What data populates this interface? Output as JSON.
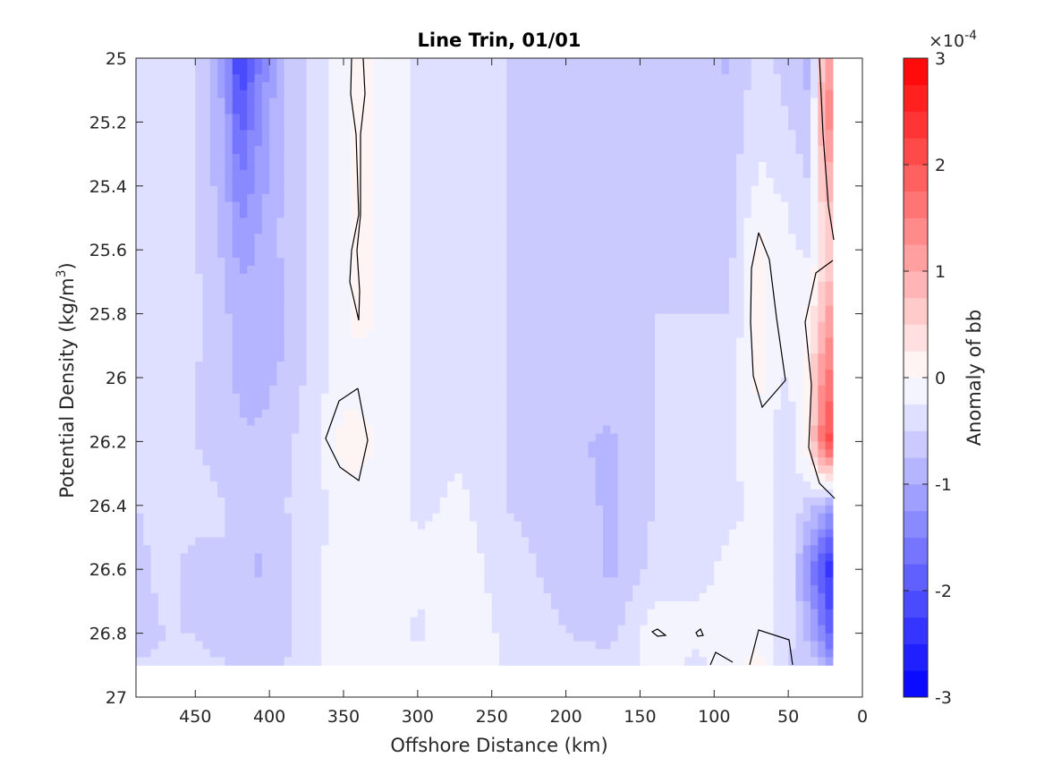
{
  "chart_data": {
    "type": "heatmap",
    "title": "Line Trin, 01/01",
    "xlabel": "Offshore Distance (km)",
    "ylabel_main": "Potential Density (kg/m",
    "ylabel_sup": "3",
    "ylabel_close": ")",
    "xlim": [
      490,
      0
    ],
    "ylim": [
      25,
      27
    ],
    "x_reversed": true,
    "y_reversed": true,
    "x_ticks": [
      450,
      400,
      350,
      300,
      250,
      200,
      150,
      100,
      50,
      0
    ],
    "x_tick_labels": [
      "450",
      "400",
      "350",
      "300",
      "250",
      "200",
      "150",
      "100",
      "50",
      "0"
    ],
    "y_ticks": [
      25,
      25.2,
      25.4,
      25.6,
      25.8,
      26,
      26.2,
      26.4,
      26.6,
      26.8,
      27
    ],
    "y_tick_labels": [
      "25",
      "25.2",
      "25.4",
      "25.6",
      "25.8",
      "26",
      "26.2",
      "26.4",
      "26.6",
      "26.8",
      "27"
    ],
    "colorbar": {
      "label": "Anomaly of bb",
      "exponent_base": "×10",
      "exponent_power": "-4",
      "clim": [
        -3,
        3
      ],
      "ticks": [
        -3,
        -2,
        -1,
        0,
        1,
        2,
        3
      ],
      "tick_labels": [
        "-3",
        "-2",
        "-1",
        "0",
        "1",
        "2",
        "3"
      ],
      "levels": 24,
      "colormap": "blue-white-red",
      "negative_color": "#0000ff",
      "positive_color": "#ff0000",
      "zero_color": "#ffffff"
    },
    "data_extent": {
      "x": [
        490,
        20
      ],
      "y": [
        25,
        26.9
      ]
    },
    "zero_contour_color": "#000000",
    "column_profiles_note": "approximate anomaly (x1e-4) at density rows",
    "density_rows": [
      25.0,
      25.2,
      25.4,
      25.6,
      25.8,
      26.0,
      26.2,
      26.4,
      26.6,
      26.8,
      26.9
    ],
    "columns": [
      {
        "x": 490,
        "values": [
          -0.4,
          -0.4,
          -0.4,
          -0.4,
          -0.4,
          -0.5,
          -0.5,
          -0.5,
          -0.6,
          -0.6,
          -0.5
        ]
      },
      {
        "x": 470,
        "values": [
          -0.4,
          -0.4,
          -0.5,
          -0.4,
          -0.4,
          -0.4,
          -0.4,
          -0.4,
          -0.4,
          -0.5,
          -0.4
        ]
      },
      {
        "x": 450,
        "values": [
          -0.4,
          -0.5,
          -0.5,
          -0.5,
          -0.4,
          -0.5,
          -0.5,
          -0.4,
          -0.6,
          -0.5,
          -0.4
        ]
      },
      {
        "x": 430,
        "values": [
          -1.2,
          -1.0,
          -0.9,
          -0.8,
          -0.7,
          -0.7,
          -0.6,
          -0.5,
          -0.5,
          -0.6,
          -0.5
        ]
      },
      {
        "x": 420,
        "values": [
          -2.4,
          -1.9,
          -1.5,
          -1.1,
          -0.9,
          -0.8,
          -0.7,
          -0.6,
          -0.6,
          -0.6,
          -0.5
        ]
      },
      {
        "x": 410,
        "values": [
          -1.7,
          -1.4,
          -1.2,
          -1.0,
          -0.9,
          -0.9,
          -0.7,
          -0.7,
          -0.8,
          -0.6,
          -0.5
        ]
      },
      {
        "x": 390,
        "values": [
          -0.7,
          -0.7,
          -0.7,
          -0.7,
          -0.8,
          -0.7,
          -0.6,
          -0.5,
          -0.6,
          -0.6,
          -0.5
        ]
      },
      {
        "x": 370,
        "values": [
          -0.4,
          -0.4,
          -0.4,
          -0.4,
          -0.4,
          -0.4,
          -0.3,
          -0.4,
          -0.3,
          -0.3,
          -0.3
        ]
      },
      {
        "x": 350,
        "values": [
          -0.1,
          -0.1,
          -0.1,
          -0.1,
          -0.1,
          -0.1,
          0.1,
          -0.1,
          -0.1,
          -0.1,
          -0.1
        ]
      },
      {
        "x": 340,
        "values": [
          0.1,
          0.1,
          0.1,
          0.1,
          0.1,
          -0.1,
          0.1,
          -0.1,
          -0.1,
          -0.1,
          -0.1
        ]
      },
      {
        "x": 320,
        "values": [
          -0.1,
          -0.1,
          -0.1,
          -0.1,
          -0.1,
          -0.1,
          -0.1,
          -0.1,
          -0.1,
          -0.1,
          -0.1
        ]
      },
      {
        "x": 300,
        "values": [
          -0.3,
          -0.3,
          -0.3,
          -0.3,
          -0.3,
          -0.3,
          -0.3,
          -0.3,
          -0.2,
          -0.3,
          -0.2
        ]
      },
      {
        "x": 270,
        "values": [
          -0.3,
          -0.3,
          -0.3,
          -0.3,
          -0.3,
          -0.3,
          -0.3,
          -0.2,
          -0.1,
          -0.1,
          -0.1
        ]
      },
      {
        "x": 240,
        "values": [
          -0.5,
          -0.5,
          -0.5,
          -0.5,
          -0.5,
          -0.5,
          -0.5,
          -0.5,
          -0.4,
          -0.3,
          -0.3
        ]
      },
      {
        "x": 200,
        "values": [
          -0.6,
          -0.6,
          -0.7,
          -0.7,
          -0.6,
          -0.6,
          -0.7,
          -0.6,
          -0.6,
          -0.5,
          -0.4
        ]
      },
      {
        "x": 170,
        "values": [
          -0.7,
          -0.7,
          -0.7,
          -0.7,
          -0.6,
          -0.6,
          -0.8,
          -0.8,
          -0.8,
          -0.6,
          -0.4
        ]
      },
      {
        "x": 140,
        "values": [
          -0.5,
          -0.5,
          -0.5,
          -0.5,
          -0.5,
          -0.5,
          -0.5,
          -0.5,
          -0.4,
          -0.1,
          -0.2
        ]
      },
      {
        "x": 110,
        "values": [
          -0.6,
          -0.6,
          -0.6,
          -0.6,
          -0.5,
          -0.5,
          -0.4,
          -0.4,
          -0.3,
          -0.2,
          -0.3
        ]
      },
      {
        "x": 90,
        "values": [
          -0.8,
          -0.7,
          -0.6,
          -0.6,
          -0.5,
          -0.4,
          -0.3,
          -0.3,
          -0.2,
          -0.2,
          -0.1
        ]
      },
      {
        "x": 70,
        "values": [
          -0.4,
          -0.3,
          -0.2,
          0.1,
          0.1,
          0.1,
          -0.1,
          -0.2,
          -0.2,
          -0.1,
          0.1
        ]
      },
      {
        "x": 50,
        "values": [
          -0.6,
          -0.5,
          -0.3,
          -0.2,
          -0.2,
          -0.3,
          -0.5,
          -0.3,
          -0.3,
          -0.4,
          -0.5
        ]
      },
      {
        "x": 35,
        "values": [
          -0.9,
          -0.7,
          -0.5,
          -0.3,
          0.1,
          0.3,
          0.4,
          -0.6,
          -1.4,
          -0.9,
          -0.6
        ]
      },
      {
        "x": 25,
        "values": [
          1.2,
          1.4,
          0.9,
          0.5,
          0.9,
          1.5,
          2.0,
          -1.0,
          -2.2,
          -1.6,
          -1.0
        ]
      },
      {
        "x": 20,
        "values": [
          1.2,
          1.2,
          0.8,
          0.5,
          1.2,
          1.6,
          2.2,
          -1.2,
          -2.5,
          -2.0,
          -1.2
        ]
      }
    ]
  }
}
